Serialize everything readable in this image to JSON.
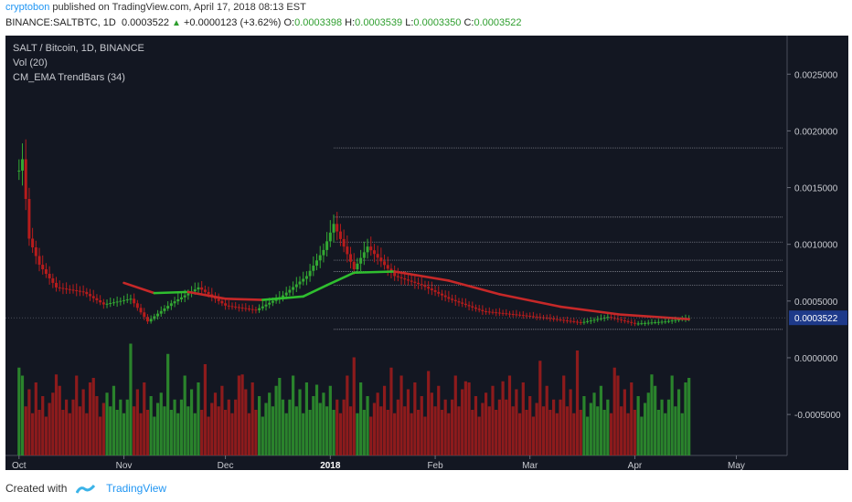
{
  "header": {
    "author": "cryptobon",
    "published_text": "published on TradingView.com, April 17, 2018 08:13 EST",
    "symbol": "BINANCE:SALTBTC, 1D",
    "last": "0.0003522",
    "change": "+0.0000123 (+3.62%)",
    "o_label": "O:",
    "o": "0.0003398",
    "h_label": "H:",
    "h": "0.0003539",
    "l_label": "L:",
    "l": "0.0003350",
    "c_label": "C:",
    "c": "0.0003522"
  },
  "legend": {
    "title": "SALT / Bitcoin, 1D, BINANCE",
    "vol": "Vol (20)",
    "indicator": "CM_EMA TrendBars (34)"
  },
  "footer": {
    "created_with": "Created with",
    "brand": "TradingView"
  },
  "colors": {
    "background": "#131722",
    "up": "#33a833",
    "down": "#b71c1c",
    "ema_up": "#2fbe2f",
    "ema_down": "#c62828",
    "axis_text": "#c7c9cf",
    "price_tag": "#1e3a8a",
    "fib_line": "#9598a1"
  },
  "chart_data": {
    "type": "candlestick",
    "title": "SALT / Bitcoin, 1D, BINANCE",
    "x_axis": {
      "ticks": [
        "Oct",
        "Nov",
        "Dec",
        "2018",
        "Feb",
        "Mar",
        "Apr",
        "May"
      ]
    },
    "y_axis": {
      "ticks": [
        "0.0025000",
        "0.0020000",
        "0.0015000",
        "0.0010000",
        "0.0005000",
        "0.0000000",
        "-0.0005000"
      ],
      "range": [
        -0.00099,
        0.00284
      ]
    },
    "last_price_label": "0.0003522",
    "price_trace": [
      [
        "2017-10-01",
        0.00165
      ],
      [
        "2017-10-02",
        0.00175
      ],
      [
        "2017-10-04",
        0.00105
      ],
      [
        "2017-10-07",
        0.00082
      ],
      [
        "2017-10-12",
        0.00062
      ],
      [
        "2017-10-20",
        0.00058
      ],
      [
        "2017-10-26",
        0.00047
      ],
      [
        "2017-11-03",
        0.00052
      ],
      [
        "2017-11-08",
        0.00032
      ],
      [
        "2017-11-15",
        0.00048
      ],
      [
        "2017-11-23",
        0.00062
      ],
      [
        "2017-12-01",
        0.00046
      ],
      [
        "2017-12-10",
        0.00042
      ],
      [
        "2017-12-18",
        0.00055
      ],
      [
        "2017-12-25",
        0.00072
      ],
      [
        "2017-12-30",
        0.00095
      ],
      [
        "2018-01-02",
        0.00118
      ],
      [
        "2018-01-08",
        0.00078
      ],
      [
        "2018-01-12",
        0.00098
      ],
      [
        "2018-01-20",
        0.00072
      ],
      [
        "2018-01-28",
        0.00064
      ],
      [
        "2018-02-05",
        0.00052
      ],
      [
        "2018-02-15",
        0.00041
      ],
      [
        "2018-02-25",
        0.00038
      ],
      [
        "2018-03-06",
        0.00035
      ],
      [
        "2018-03-16",
        0.00031
      ],
      [
        "2018-03-24",
        0.00036
      ],
      [
        "2018-04-01",
        0.0003
      ],
      [
        "2018-04-10",
        0.00032
      ],
      [
        "2018-04-17",
        0.00035
      ]
    ],
    "ema_34": [
      [
        "2017-11-01",
        0.00066
      ],
      [
        "2017-11-10",
        0.00057
      ],
      [
        "2017-11-20",
        0.00058
      ],
      [
        "2017-12-01",
        0.00052
      ],
      [
        "2017-12-12",
        0.00051
      ],
      [
        "2017-12-24",
        0.00054
      ],
      [
        "2017-12-31",
        0.00064
      ],
      [
        "2018-01-08",
        0.00075
      ],
      [
        "2018-01-20",
        0.00076
      ],
      [
        "2018-02-05",
        0.00068
      ],
      [
        "2018-02-20",
        0.00056
      ],
      [
        "2018-03-10",
        0.00045
      ],
      [
        "2018-03-28",
        0.00038
      ],
      [
        "2018-04-17",
        0.00034
      ]
    ],
    "fib_levels": [
      0.00185,
      0.00124,
      0.00102,
      0.00086,
      0.00076,
      0.00064,
      0.00025
    ],
    "fib_start_date": "2018-01-02",
    "volume_pattern": [
      0.55,
      0.9,
      0.45,
      0.7,
      0.35,
      0.8,
      0.4,
      0.6,
      0.3,
      0.5,
      0.65,
      0.45,
      0.75,
      0.4,
      0.55,
      0.35
    ]
  }
}
